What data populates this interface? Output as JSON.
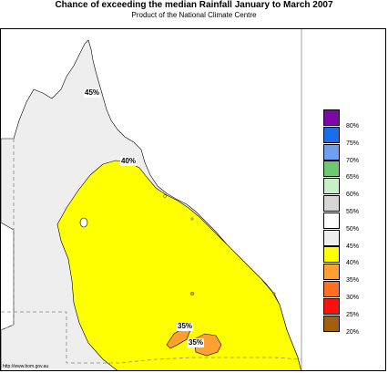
{
  "title": "Chance of exceeding the median Rainfall January to March 2007",
  "subtitle": "Product of the National Climate Centre",
  "map_labels": {
    "north": "45%",
    "central": "40%",
    "south_a": "35%",
    "south_b": "35%"
  },
  "legend": [
    {
      "label": "80%",
      "color": "#7a0aa8"
    },
    {
      "label": "75%",
      "color": "#1a6fe8"
    },
    {
      "label": "70%",
      "color": "#6fa0f0"
    },
    {
      "label": "65%",
      "color": "#6ec870"
    },
    {
      "label": "60%",
      "color": "#c8f0c8"
    },
    {
      "label": "55%",
      "color": "#d6d6d6"
    },
    {
      "label": "50%",
      "color": "#ffffff"
    },
    {
      "label": "45%",
      "color": "#eeeeee"
    },
    {
      "label": "40%",
      "color": "#ffff00"
    },
    {
      "label": "35%",
      "color": "#ffa030"
    },
    {
      "label": "30%",
      "color": "#ff7020"
    },
    {
      "label": "25%",
      "color": "#ff1010"
    },
    {
      "label": "20%",
      "color": "#a06010"
    }
  ],
  "footer_url": "http://www.bom.gov.au",
  "colors": {
    "land_45": "#eeeeee",
    "land_40": "#ffff00",
    "land_35": "#ffa030",
    "sea": "#ffffff",
    "border": "#888888"
  }
}
